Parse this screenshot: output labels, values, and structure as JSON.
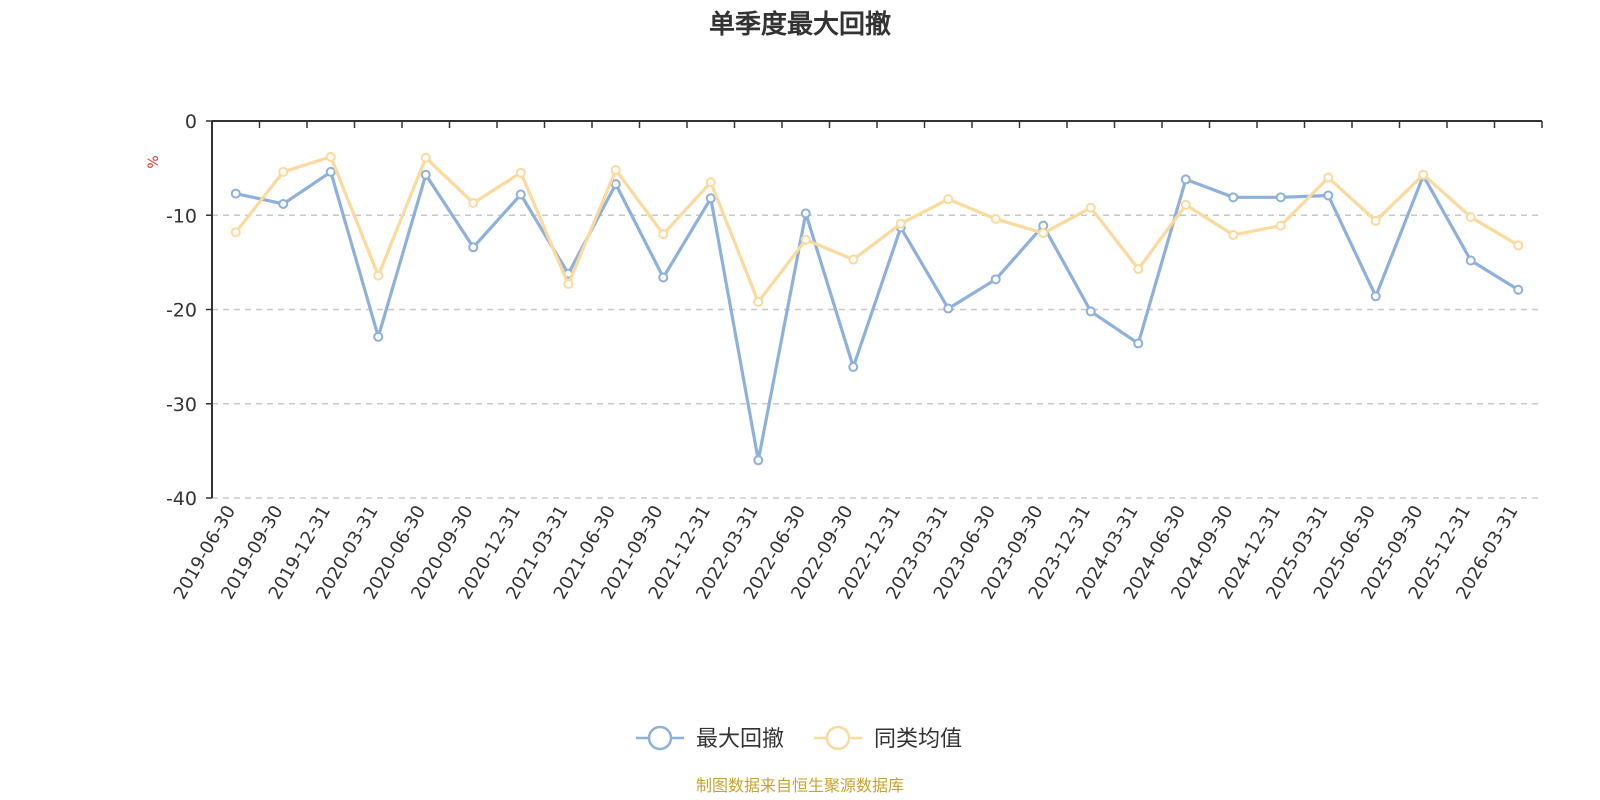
{
  "colors": {
    "series1": "#8eb0dc",
    "series2": "#fcd99d",
    "grid": "#c8c8c8",
    "axis": "#333333",
    "unit": "#e8322f",
    "source": "#c7a42f"
  },
  "chart_data": {
    "type": "line",
    "title": "单季度最大回撤",
    "ylabel": "%",
    "xlabel": "",
    "ylim": [
      -40,
      0
    ],
    "yticks": [
      0,
      -10,
      -20,
      -30,
      -40
    ],
    "grid": true,
    "legend_position": "bottom-center",
    "categories": [
      "2019-06-30",
      "2019-09-30",
      "2019-12-31",
      "2020-03-31",
      "2020-06-30",
      "2020-09-30",
      "2020-12-31",
      "2021-03-31",
      "2021-06-30",
      "2021-09-30",
      "2021-12-31",
      "2022-03-31",
      "2022-06-30",
      "2022-09-30",
      "2022-12-31",
      "2023-03-31",
      "2023-06-30",
      "2023-09-30",
      "2023-12-31",
      "2024-03-31",
      "2024-06-30",
      "2024-09-30",
      "2024-12-31",
      "2025-03-31",
      "2025-06-30",
      "2025-09-30",
      "2025-12-31",
      "2026-03-31"
    ],
    "series": [
      {
        "name": "最大回撤",
        "values": [
          -7.7,
          -8.8,
          -5.4,
          -22.9,
          -5.7,
          -13.4,
          -7.8,
          -16.2,
          -6.7,
          -16.6,
          -8.2,
          -36.0,
          -9.8,
          -26.1,
          -11.3,
          -19.9,
          -16.8,
          -11.1,
          -20.2,
          -23.6,
          -6.2,
          -8.1,
          -8.1,
          -7.9,
          -18.6,
          -5.8,
          -14.8,
          -17.9
        ]
      },
      {
        "name": "同类均值",
        "values": [
          -11.8,
          -5.4,
          -3.8,
          -16.4,
          -3.9,
          -8.7,
          -5.5,
          -17.3,
          -5.2,
          -12.0,
          -6.5,
          -19.2,
          -12.6,
          -14.7,
          -10.9,
          -8.3,
          -10.4,
          -11.9,
          -9.2,
          -15.7,
          -8.9,
          -12.1,
          -11.1,
          -6.0,
          -10.6,
          -5.7,
          -10.2,
          -13.2
        ]
      }
    ]
  },
  "source_text": "制图数据来自恒生聚源数据库"
}
